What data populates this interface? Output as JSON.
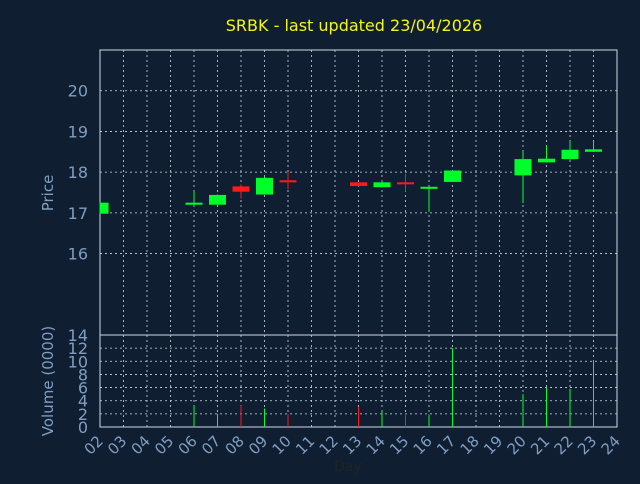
{
  "chart_data": {
    "type": "candlestick",
    "title": "SRBK - last updated 23/04/2026",
    "colors": {
      "background": "#0f1f31",
      "title": "#f5f516",
      "axis_text": "#7f9ec1",
      "grid": "#cfd8e3",
      "up": "#00ff2a",
      "down": "#ff1a1a"
    },
    "grid": true,
    "x": {
      "label": "Day",
      "ticks": [
        "02",
        "03",
        "04",
        "05",
        "06",
        "07",
        "08",
        "09",
        "10",
        "11",
        "12",
        "13",
        "14",
        "15",
        "16",
        "17",
        "18",
        "19",
        "20",
        "21",
        "22",
        "23",
        "24"
      ]
    },
    "price_panel": {
      "ylabel": "Price",
      "ylim": [
        14,
        21
      ],
      "yticks": [
        "14",
        "16",
        "17",
        "18",
        "19",
        "20"
      ],
      "candles": [
        {
          "day": "02",
          "open": 16.98,
          "high": 17.25,
          "low": 16.98,
          "close": 17.25,
          "dir": "up"
        },
        {
          "day": "06",
          "open": 17.2,
          "high": 17.52,
          "low": 17.18,
          "close": 17.25,
          "dir": "up"
        },
        {
          "day": "07",
          "open": 17.2,
          "high": 17.45,
          "low": 17.2,
          "close": 17.44,
          "dir": "up"
        },
        {
          "day": "08",
          "open": 17.65,
          "high": 17.7,
          "low": 17.35,
          "close": 17.52,
          "dir": "down"
        },
        {
          "day": "09",
          "open": 17.45,
          "high": 17.88,
          "low": 17.45,
          "close": 17.86,
          "dir": "up"
        },
        {
          "day": "10",
          "open": 17.8,
          "high": 18.0,
          "low": 17.58,
          "close": 17.75,
          "dir": "down"
        },
        {
          "day": "13",
          "open": 17.75,
          "high": 17.75,
          "low": 17.65,
          "close": 17.66,
          "dir": "down"
        },
        {
          "day": "14",
          "open": 17.63,
          "high": 17.79,
          "low": 17.63,
          "close": 17.75,
          "dir": "up"
        },
        {
          "day": "15",
          "open": 17.75,
          "high": 17.96,
          "low": 17.52,
          "close": 17.71,
          "dir": "down"
        },
        {
          "day": "16",
          "open": 17.62,
          "high": 17.64,
          "low": 17.02,
          "close": 17.64,
          "dir": "up"
        },
        {
          "day": "17",
          "open": 17.76,
          "high": 18.04,
          "low": 17.76,
          "close": 18.04,
          "dir": "up"
        },
        {
          "day": "20",
          "open": 17.92,
          "high": 18.5,
          "low": 17.24,
          "close": 18.32,
          "dir": "up"
        },
        {
          "day": "21",
          "open": 18.24,
          "high": 18.65,
          "low": 18.24,
          "close": 18.33,
          "dir": "up"
        },
        {
          "day": "22",
          "open": 18.32,
          "high": 18.76,
          "low": 18.3,
          "close": 18.55,
          "dir": "up"
        },
        {
          "day": "23",
          "open": 18.5,
          "high": 18.75,
          "low": 18.5,
          "close": 18.56,
          "dir": "up"
        }
      ]
    },
    "volume_panel": {
      "ylabel": "Volume (0000)",
      "ylim": [
        0,
        14
      ],
      "yticks": [
        "0",
        "2",
        "4",
        "6",
        "8",
        "10",
        "12"
      ],
      "bars": [
        {
          "day": "06",
          "value": 3.3,
          "dir": "up"
        },
        {
          "day": "07",
          "value": 2.0,
          "dir": "up"
        },
        {
          "day": "08",
          "value": 3.3,
          "dir": "down"
        },
        {
          "day": "09",
          "value": 2.8,
          "dir": "up"
        },
        {
          "day": "10",
          "value": 1.9,
          "dir": "down"
        },
        {
          "day": "13",
          "value": 3.0,
          "dir": "down"
        },
        {
          "day": "14",
          "value": 2.5,
          "dir": "up"
        },
        {
          "day": "15",
          "value": 2.0,
          "dir": "down"
        },
        {
          "day": "16",
          "value": 1.9,
          "dir": "up"
        },
        {
          "day": "17",
          "value": 12.0,
          "dir": "up"
        },
        {
          "day": "20",
          "value": 5.0,
          "dir": "up"
        },
        {
          "day": "21",
          "value": 6.0,
          "dir": "up"
        },
        {
          "day": "22",
          "value": 5.8,
          "dir": "up"
        },
        {
          "day": "23",
          "value": 10.2,
          "dir": "up"
        }
      ]
    }
  }
}
